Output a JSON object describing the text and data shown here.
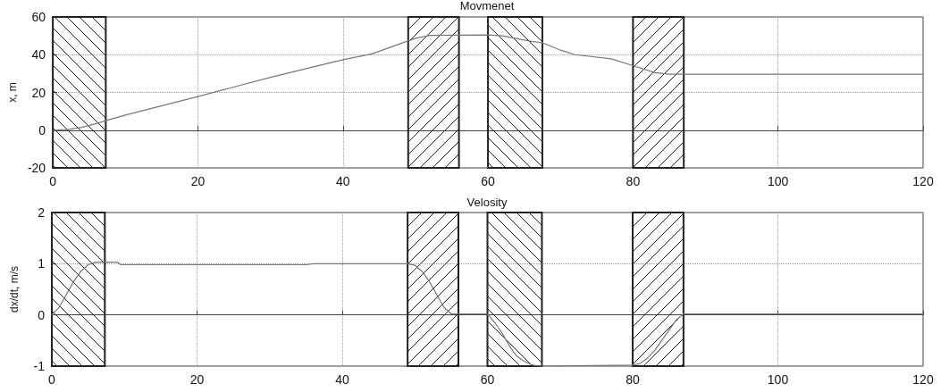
{
  "chart_data": [
    {
      "type": "line",
      "title": "Movmenet",
      "ylabel": "x, m",
      "xlim": [
        0,
        120
      ],
      "xticks": [
        0,
        20,
        40,
        60,
        80,
        100,
        120
      ],
      "ylim": [
        -20,
        60
      ],
      "yticks": [
        -20,
        0,
        20,
        40,
        60
      ],
      "grid": true,
      "marker": "none",
      "line_style": "solid",
      "bands": [
        {
          "axis": "x",
          "from": 0,
          "to": 7.3,
          "color": "#222222"
        },
        {
          "axis": "x",
          "from": 49,
          "to": 56,
          "color": "#222222"
        },
        {
          "axis": "x",
          "from": 60,
          "to": 67.5,
          "color": "#222222"
        },
        {
          "axis": "x",
          "from": 80,
          "to": 87,
          "color": "#222222"
        }
      ],
      "series": [
        {
          "color": "#777777",
          "x": [
            0,
            2,
            4,
            6,
            7.3,
            10,
            20,
            30,
            40,
            44,
            48,
            50,
            52,
            60,
            62,
            66,
            67.5,
            70,
            72,
            77,
            80,
            83,
            85,
            87,
            120
          ],
          "values": [
            0,
            0.3,
            1.5,
            3.5,
            5,
            8,
            17.8,
            28,
            37.3,
            40.4,
            46,
            48.7,
            50.2,
            50.5,
            50,
            47,
            46.4,
            42.4,
            40,
            37.8,
            34.2,
            30.5,
            29.6,
            29.6,
            29.6
          ]
        }
      ]
    },
    {
      "type": "line",
      "title": "Velosity",
      "ylabel": "dx/dt, m/s",
      "xlim": [
        0,
        120
      ],
      "xticks": [
        0,
        20,
        40,
        60,
        80,
        100,
        120
      ],
      "ylim": [
        -1,
        2
      ],
      "yticks": [
        -1,
        0,
        1,
        2
      ],
      "grid": true,
      "marker": "none",
      "line_style": "solid",
      "bands": [
        {
          "axis": "x",
          "from": 0,
          "to": 7.3,
          "color": "#222222"
        },
        {
          "axis": "x",
          "from": 49,
          "to": 56,
          "color": "#222222"
        },
        {
          "axis": "x",
          "from": 60,
          "to": 67.5,
          "color": "#222222"
        },
        {
          "axis": "x",
          "from": 80,
          "to": 87,
          "color": "#222222"
        }
      ],
      "series": [
        {
          "color": "#777777",
          "x": [
            0,
            1,
            2,
            3,
            4,
            5,
            6,
            9,
            9.5,
            35,
            36,
            49,
            50,
            51,
            52,
            53,
            54,
            55,
            56,
            60,
            61,
            62,
            63,
            64,
            65,
            66,
            67,
            80,
            81,
            82,
            83,
            84,
            85,
            86,
            87,
            120
          ],
          "values": [
            0,
            0.15,
            0.4,
            0.65,
            0.85,
            0.98,
            1.03,
            1.03,
            0.98,
            0.98,
            1,
            1,
            0.97,
            0.85,
            0.65,
            0.4,
            0.15,
            0.02,
            0.02,
            0.02,
            -0.15,
            -0.35,
            -0.6,
            -0.8,
            -0.9,
            -0.97,
            -1,
            -0.98,
            -0.95,
            -0.85,
            -0.7,
            -0.5,
            -0.3,
            -0.1,
            0.02,
            0.02
          ]
        }
      ]
    }
  ]
}
